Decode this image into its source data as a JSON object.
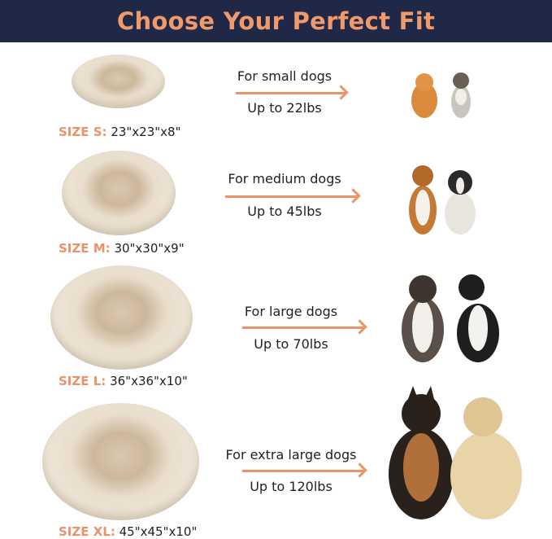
{
  "header": {
    "title": "Choose Your Perfect Fit"
  },
  "colors": {
    "header_bg": "#1f2847",
    "accent": "#f09a6c",
    "bed": "#e9ddcc"
  },
  "sizes": [
    {
      "label": "SIZE S:",
      "dimensions": "23\"x23\"x8\"",
      "for": "For small dogs",
      "weight": "Up to 22lbs",
      "dogs": [
        "pomeranian",
        "yorkshire-terrier"
      ]
    },
    {
      "label": "SIZE M:",
      "dimensions": "30\"x30\"x9\"",
      "for": "For medium dogs",
      "weight": "Up to 45lbs",
      "dogs": [
        "beagle",
        "french-bulldog"
      ]
    },
    {
      "label": "SIZE L:",
      "dimensions": "36\"x36\"x10\"",
      "for": "For large dogs",
      "weight": "Up to 70lbs",
      "dogs": [
        "australian-shepherd",
        "border-collie"
      ]
    },
    {
      "label": "SIZE XL:",
      "dimensions": "45\"x45\"x10\"",
      "for": "For extra large dogs",
      "weight": "Up to 120lbs",
      "dogs": [
        "german-shepherd",
        "golden-retriever"
      ]
    }
  ]
}
